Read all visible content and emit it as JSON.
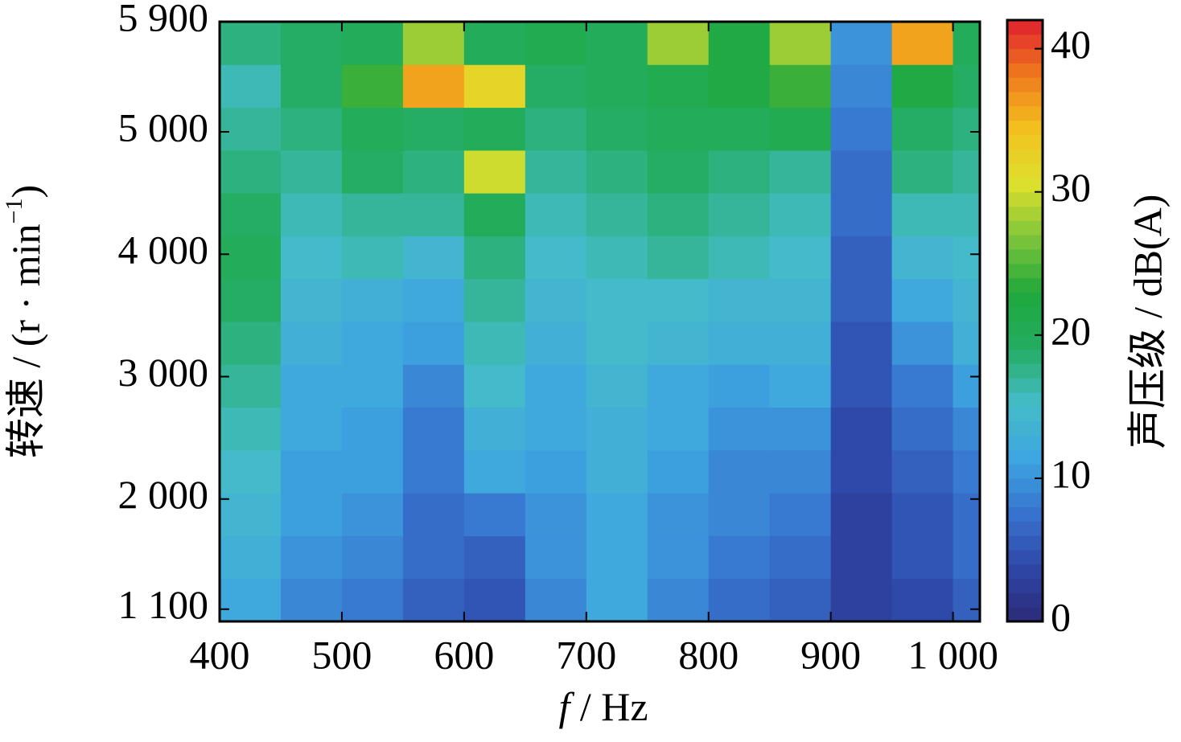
{
  "chart_data": {
    "type": "heatmap",
    "xlabel": [
      "f",
      " / Hz"
    ],
    "ylabel": [
      "转速 / (r · min",
      "−1",
      ")"
    ],
    "colorbar_label": "声压级 / dB(A)",
    "xlim": [
      400,
      1022
    ],
    "ylim": [
      1000,
      5900
    ],
    "zlim": [
      0,
      42
    ],
    "xticks": [
      400,
      500,
      600,
      700,
      800,
      900,
      {
        "value": 1000,
        "label": "1 000"
      }
    ],
    "yticks": [
      {
        "value": 1100,
        "label": "1 100"
      },
      {
        "value": 2000,
        "label": "2 000"
      },
      {
        "value": 3000,
        "label": "3 000"
      },
      {
        "value": 4000,
        "label": "4 000"
      },
      {
        "value": 5000,
        "label": "5 000"
      },
      {
        "value": 5900,
        "label": "5 900"
      }
    ],
    "zticks": [
      0,
      10,
      20,
      30,
      40
    ],
    "colormap": [
      "#2b2a78",
      "#2f47a8",
      "#3775cf",
      "#3ea6e0",
      "#45bcc8",
      "#24ad62",
      "#1fa83c",
      "#7cc43a",
      "#dce02e",
      "#f3c21e",
      "#ef7a1e",
      "#e0202e"
    ],
    "x": [
      425,
      475,
      525,
      575,
      625,
      675,
      725,
      775,
      825,
      875,
      925,
      975,
      1025
    ],
    "y": [
      1175,
      1525,
      1875,
      2225,
      2575,
      2925,
      3275,
      3625,
      3975,
      4325,
      4675,
      5025,
      5375,
      5725
    ],
    "z": [
      [
        12,
        9,
        8,
        6,
        5,
        9,
        12,
        9,
        7,
        6,
        3,
        4,
        6
      ],
      [
        13,
        10,
        9,
        7,
        6,
        10,
        12,
        10,
        8,
        7,
        3,
        5,
        7
      ],
      [
        14,
        11,
        10,
        7,
        8,
        10,
        12,
        10,
        9,
        8,
        3,
        5,
        7
      ],
      [
        15,
        11,
        11,
        8,
        12,
        11,
        13,
        11,
        9,
        9,
        4,
        6,
        8
      ],
      [
        16,
        12,
        11,
        8,
        13,
        12,
        13,
        12,
        10,
        10,
        4,
        7,
        9
      ],
      [
        17,
        12,
        12,
        9,
        15,
        12,
        14,
        12,
        11,
        12,
        5,
        8,
        11
      ],
      [
        18,
        13,
        12,
        11,
        16,
        13,
        15,
        14,
        13,
        13,
        5,
        10,
        13
      ],
      [
        19,
        14,
        13,
        12,
        17,
        14,
        15,
        15,
        14,
        14,
        6,
        12,
        14
      ],
      [
        20,
        15,
        16,
        14,
        18,
        15,
        16,
        17,
        16,
        15,
        6,
        14,
        15
      ],
      [
        19,
        16,
        17,
        17,
        20,
        16,
        17,
        18,
        17,
        16,
        7,
        16,
        16
      ],
      [
        18,
        17,
        19,
        18,
        30,
        17,
        18,
        19,
        18,
        17,
        7,
        18,
        17
      ],
      [
        17,
        18,
        20,
        19,
        20,
        18,
        19,
        20,
        20,
        21,
        8,
        19,
        18
      ],
      [
        16,
        19,
        24,
        36,
        32,
        19,
        20,
        21,
        22,
        24,
        9,
        22,
        19
      ],
      [
        18,
        19,
        20,
        28,
        20,
        21,
        20,
        28,
        22,
        28,
        10,
        36,
        20
      ]
    ]
  }
}
